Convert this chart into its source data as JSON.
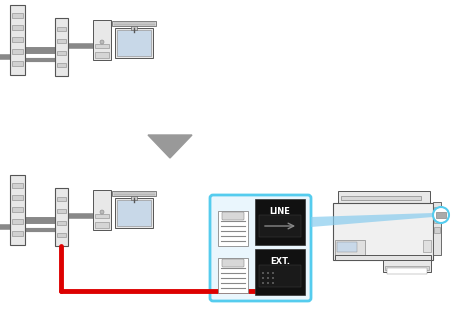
{
  "bg_color": "#ffffff",
  "gray_cable": "#888888",
  "red_cable": "#dd0000",
  "dc": "#555555",
  "dc2": "#888888",
  "arrow_fill": "#999999",
  "box_outline": "#55ccee",
  "box_fill": "#eaf6fd",
  "ext_bg": "#111111",
  "line_bg": "#111111",
  "jack_bg": "#f0f0f0",
  "panel_bg": "#e8e8e8",
  "beam_fill": "#88ccee",
  "circle_outline": "#55ccee",
  "printer_bg": "#f2f2f2",
  "monitor_screen": "#c8d8e8"
}
